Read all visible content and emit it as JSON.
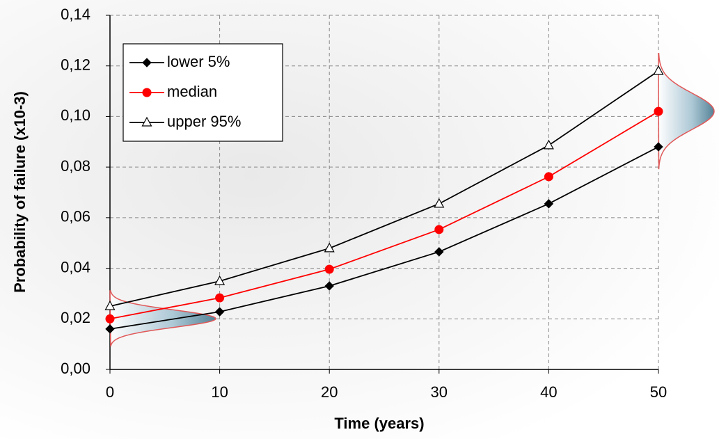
{
  "chart_data": {
    "type": "line",
    "x_label": "Time (years)",
    "y_label": "Probability of failure (x10-3)",
    "x": [
      0,
      10,
      20,
      30,
      40,
      50
    ],
    "xlim": [
      0,
      50
    ],
    "xticks": [
      0,
      10,
      20,
      30,
      40,
      50
    ],
    "ylim": [
      0,
      0.14
    ],
    "yticks": [
      {
        "value": 0,
        "label": "0,00"
      },
      {
        "value": 0.02,
        "label": "0,02"
      },
      {
        "value": 0.04,
        "label": "0,04"
      },
      {
        "value": 0.06,
        "label": "0,06"
      },
      {
        "value": 0.08,
        "label": "0,08"
      },
      {
        "value": 0.1,
        "label": "0,10"
      },
      {
        "value": 0.12,
        "label": "0,12"
      },
      {
        "value": 0.14,
        "label": "0,14"
      }
    ],
    "grid": true,
    "legend": "upper left",
    "series": [
      {
        "name": "lower 5%",
        "color": "#000000",
        "marker": "diamond",
        "values": [
          0.016,
          0.0228,
          0.033,
          0.0465,
          0.0655,
          0.088
        ]
      },
      {
        "name": "median",
        "color": "#ff0000",
        "marker": "circle",
        "values": [
          0.02,
          0.0283,
          0.0396,
          0.0553,
          0.0762,
          0.102
        ]
      },
      {
        "name": "upper 95%",
        "color": "#000000",
        "marker": "triangle",
        "values": [
          0.025,
          0.0349,
          0.0479,
          0.0655,
          0.0886,
          0.118
        ]
      }
    ]
  }
}
